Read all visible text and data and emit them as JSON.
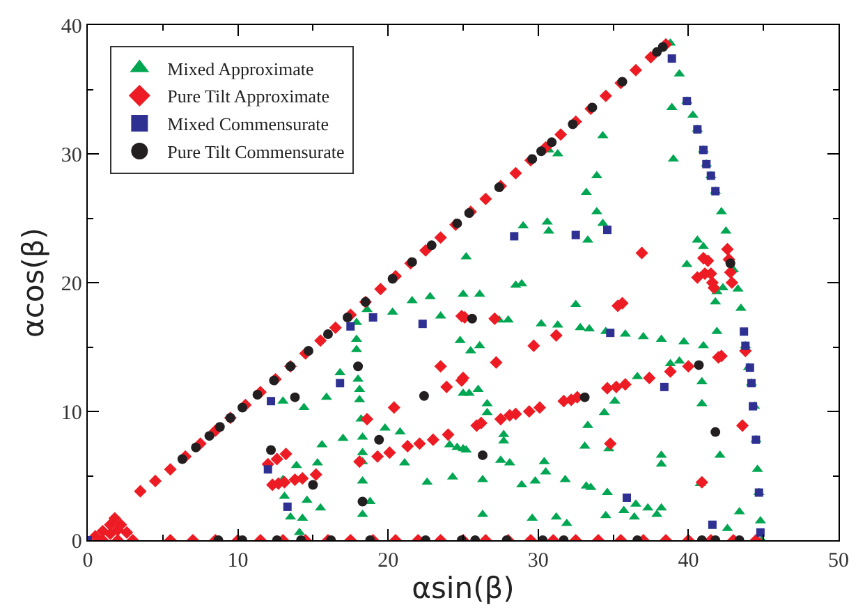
{
  "chart_data": {
    "type": "scatter",
    "xlabel": "αsin(β)",
    "ylabel": "αcos(β)",
    "xlim": [
      0,
      50
    ],
    "ylim": [
      0,
      40
    ],
    "xticks": [
      0,
      10,
      20,
      30,
      40,
      50
    ],
    "yticks": [
      0,
      10,
      20,
      30,
      40
    ],
    "legend": "top left",
    "series": [
      {
        "name": "Mixed Approximate",
        "color": "#00a651",
        "marker": "triangle",
        "x": [
          38.8,
          39.4,
          39.9,
          40.3,
          40.6,
          41.0,
          41.2,
          41.5,
          41.8,
          42.2,
          42.5,
          43.0,
          43.3,
          43.5,
          43.8,
          44.0,
          44.2,
          44.4,
          44.5,
          44.6,
          44.7,
          44.8,
          44.9,
          17.9,
          17.9,
          18.0,
          18.1,
          18.1,
          18.2,
          18.3,
          18.3,
          18.3,
          18.3,
          18.3,
          18.8,
          16.8,
          15.9,
          14.4,
          13.0,
          15.6,
          17.0,
          19.8,
          20.8,
          21.1,
          22.6,
          24.3,
          15.3,
          13.9,
          13.0,
          13.1,
          13.5,
          14.3,
          14.6,
          15.5,
          14.1,
          18.6,
          17.9,
          20.3,
          21.6,
          22.8,
          23.5,
          24.8,
          25.0,
          25.0,
          24.1,
          24.6,
          25.2,
          38.9,
          39.0,
          34.3,
          33.9,
          33.2,
          33.9,
          30.7,
          31.3,
          29.0,
          30.6,
          30.7,
          34.3,
          33.3,
          25.2,
          28.5,
          28.9,
          26.1,
          40.6,
          41.0,
          39.9,
          41.9,
          32.5,
          27.4,
          28.0,
          30.2,
          31.3,
          32.8,
          33.4,
          34.5,
          35.8,
          37.0,
          38.2,
          39.7,
          41.0,
          41.9,
          25.5,
          26.1,
          36.6,
          38.8,
          39.4,
          40.9,
          40.9,
          26.0,
          25.4,
          26.6,
          26.6,
          27.7,
          27.7,
          33.3,
          35.1,
          34.4,
          33.1,
          34.7,
          25.0,
          27.5,
          28.1,
          30.4,
          30.5,
          31.8,
          29.8,
          28.9,
          33.2,
          33.5,
          34.6,
          26.3,
          26.3,
          29.6,
          31.2,
          31.9,
          34.5,
          35.7,
          36.5,
          37.3,
          38.2,
          36.4,
          37.9,
          38.2,
          38.2,
          40.8,
          42.1,
          41.8,
          42.3,
          43.4,
          42.6
        ],
        "values": [
          38.6,
          36.2,
          34.1,
          33.0,
          31.9,
          30.3,
          29.2,
          28.3,
          27.1,
          25.5,
          24.0,
          21.0,
          19.5,
          18.0,
          15.1,
          13.4,
          12.2,
          10.4,
          7.8,
          5.5,
          3.7,
          1.5,
          0.0,
          15.6,
          14.8,
          12.5,
          11.7,
          10.9,
          9.4,
          8.0,
          6.8,
          6.1,
          4.6,
          2.0,
          3.0,
          13.0,
          11.1,
          10.3,
          10.8,
          7.4,
          7.9,
          8.7,
          8.4,
          6.0,
          4.5,
          4.9,
          6.0,
          5.8,
          4.7,
          3.4,
          1.8,
          1.7,
          3.1,
          2.5,
          0.6,
          17.9,
          16.9,
          17.7,
          18.6,
          18.9,
          17.4,
          15.5,
          11.4,
          19.1,
          7.4,
          7.2,
          7.0,
          33.6,
          29.6,
          31.4,
          28.3,
          27.0,
          25.5,
          30.3,
          30.0,
          24.4,
          24.7,
          24.0,
          24.6,
          23.3,
          22.0,
          19.8,
          19.9,
          19.1,
          23.3,
          22.8,
          21.4,
          19.3,
          18.3,
          17.1,
          17.1,
          16.8,
          16.7,
          16.5,
          16.4,
          16.2,
          16.0,
          15.8,
          15.6,
          15.4,
          15.1,
          16.2,
          14.7,
          15.1,
          12.7,
          13.7,
          13.9,
          12.3,
          10.6,
          11.7,
          11.4,
          10.6,
          9.9,
          8.2,
          7.7,
          8.9,
          10.8,
          9.9,
          7.3,
          7.1,
          7.1,
          6.2,
          6.0,
          6.1,
          5.3,
          4.7,
          4.6,
          4.3,
          4.2,
          4.1,
          3.7,
          4.7,
          2.0,
          1.7,
          1.8,
          1.3,
          1.9,
          2.3,
          2.8,
          2.5,
          2.5,
          1.8,
          2.0,
          6.6,
          5.9,
          4.4,
          6.6,
          18.5,
          19.6,
          2.2,
          0.9
        ]
      },
      {
        "name": "Pure Tilt Approximate",
        "color": "#ed1c24",
        "marker": "diamond",
        "x": [
          3.5,
          4.5,
          5.5,
          6.5,
          7.5,
          8.5,
          9.5,
          10.5,
          11.5,
          12.5,
          13.5,
          14.5,
          15.5,
          16.5,
          17.5,
          18.5,
          19.5,
          20.5,
          21.5,
          22.5,
          23.5,
          24.5,
          25.5,
          26.5,
          27.5,
          28.5,
          29.5,
          30.5,
          31.5,
          32.5,
          33.5,
          34.5,
          35.5,
          36.5,
          37.5,
          38.5,
          5.5,
          7.0,
          8.5,
          10.0,
          11.5,
          13.0,
          14.5,
          16.0,
          17.5,
          19.0,
          20.5,
          22.0,
          23.5,
          25.0,
          26.5,
          28.0,
          29.5,
          31.0,
          32.5,
          34.0,
          35.5,
          37.0,
          38.5,
          40.0,
          41.5,
          43.0,
          44.5,
          0.5,
          1.0,
          1.5,
          1.8,
          2.2,
          2.6,
          3.0,
          1.0,
          2.0,
          1.5,
          2.0,
          42.6,
          42.7,
          42.8,
          42.9,
          18.6,
          18.1,
          19.3,
          20.1,
          21.3,
          22.1,
          23.0,
          24.0,
          20.4,
          23.9,
          24.9,
          23.5,
          25.1,
          12.0,
          12.6,
          13.2,
          12.3,
          12.7,
          13.1,
          13.8,
          14.3,
          15.2,
          24.9,
          27.1,
          31.2,
          29.7,
          27.2,
          25.0,
          25.9,
          26.2,
          27.5,
          28.1,
          28.5,
          29.4,
          30.1,
          31.7,
          32.2,
          32.6,
          34.6,
          35.2,
          35.8,
          37.4,
          38.8,
          40.0,
          42.0,
          42.2,
          43.8,
          43.6,
          34.8,
          40.9,
          35.3,
          35.6,
          36.9,
          41.0,
          41.3,
          41.1,
          41.5,
          41.6,
          40.6,
          41.7
        ],
        "values": [
          3.8,
          4.6,
          5.5,
          6.5,
          7.5,
          8.5,
          9.5,
          10.5,
          11.5,
          12.5,
          13.5,
          14.5,
          15.5,
          16.5,
          17.5,
          18.5,
          19.5,
          20.5,
          21.5,
          22.5,
          23.5,
          24.5,
          25.5,
          26.5,
          27.5,
          28.5,
          29.5,
          30.5,
          31.5,
          32.5,
          33.5,
          34.5,
          35.5,
          36.5,
          37.5,
          38.5,
          0,
          0,
          0,
          0,
          0,
          0,
          0,
          0,
          0,
          0,
          0,
          0,
          0,
          0,
          0,
          0,
          0,
          0,
          0,
          0,
          0,
          0,
          0,
          0,
          0,
          0,
          0,
          0.3,
          0.7,
          1.2,
          1.7,
          1.2,
          0.6,
          0,
          0,
          0,
          0.5,
          0.8,
          22.6,
          21.8,
          20.8,
          20.0,
          9.4,
          6.1,
          6.5,
          6.8,
          7.3,
          7.5,
          7.8,
          8.2,
          10.3,
          11.9,
          12.4,
          13.5,
          17.3,
          5.9,
          6.3,
          6.7,
          4.3,
          4.4,
          4.5,
          4.7,
          4.8,
          5.1,
          17.4,
          17.2,
          15.9,
          15.1,
          13.8,
          12.6,
          8.9,
          9.1,
          9.4,
          9.7,
          9.8,
          10.0,
          10.3,
          10.8,
          10.9,
          11.1,
          11.8,
          11.9,
          12.1,
          12.6,
          13.1,
          13.5,
          14.2,
          14.3,
          14.7,
          8.9,
          7.5,
          4.5,
          18.2,
          18.4,
          22.3,
          21.9,
          21.7,
          20.7,
          20.7,
          20.0,
          20.4,
          19.6
        ]
      },
      {
        "name": "Mixed Commensurate",
        "color": "#2e3192",
        "marker": "square",
        "x": [
          0,
          17.5,
          19.0,
          22.3,
          16.8,
          12.2,
          12.0,
          13.3,
          28.4,
          32.5,
          34.6,
          38.9,
          39.9,
          40.6,
          41.0,
          41.2,
          41.5,
          41.8,
          43.7,
          43.8,
          44.1,
          44.2,
          44.3,
          44.5,
          44.7,
          44.8,
          34.8,
          38.4,
          35.9,
          41.6
        ],
        "values": [
          0,
          16.6,
          17.3,
          16.8,
          12.2,
          10.8,
          5.5,
          2.6,
          23.6,
          23.7,
          24.1,
          37.4,
          34.1,
          31.9,
          30.3,
          29.2,
          28.3,
          27.1,
          16.2,
          15.1,
          13.4,
          12.2,
          10.4,
          7.8,
          3.7,
          0.6,
          16.1,
          11.9,
          3.3,
          1.2
        ]
      },
      {
        "name": "Pure Tilt Commensurate",
        "color": "#231f20",
        "marker": "circle",
        "x": [
          6.3,
          7.2,
          8.1,
          8.8,
          9.5,
          10.3,
          11.3,
          12.4,
          13.5,
          14.7,
          16.0,
          17.3,
          18.5,
          20.3,
          21.6,
          22.9,
          24.6,
          25.4,
          27.4,
          29.6,
          30.2,
          30.9,
          32.3,
          33.6,
          35.6,
          37.9,
          38.3,
          8.7,
          10.3,
          12.6,
          14.2,
          16.2,
          18.8,
          22.5,
          24.9,
          25.8,
          27.9,
          30.3,
          31.7,
          36.6,
          40.9,
          41.8,
          43.4,
          18.0,
          13.8,
          22.4,
          19.4,
          12.2,
          15.0,
          18.3,
          25.6,
          26.3,
          33.1,
          40.7,
          41.8,
          42.8
        ],
        "values": [
          6.3,
          7.2,
          8.1,
          8.8,
          9.5,
          10.3,
          11.3,
          12.4,
          13.5,
          14.7,
          16.0,
          17.3,
          18.5,
          20.3,
          21.6,
          22.9,
          24.6,
          25.4,
          27.4,
          29.6,
          30.2,
          30.9,
          32.3,
          33.6,
          35.6,
          37.9,
          38.3,
          0,
          0,
          0,
          0,
          0,
          0,
          0,
          0,
          0,
          0,
          0,
          0,
          0,
          0,
          0,
          0,
          13.5,
          11.1,
          11.2,
          7.8,
          7.0,
          4.3,
          3.0,
          17.2,
          6.6,
          11.1,
          13.6,
          8.4,
          21.5
        ]
      }
    ]
  }
}
